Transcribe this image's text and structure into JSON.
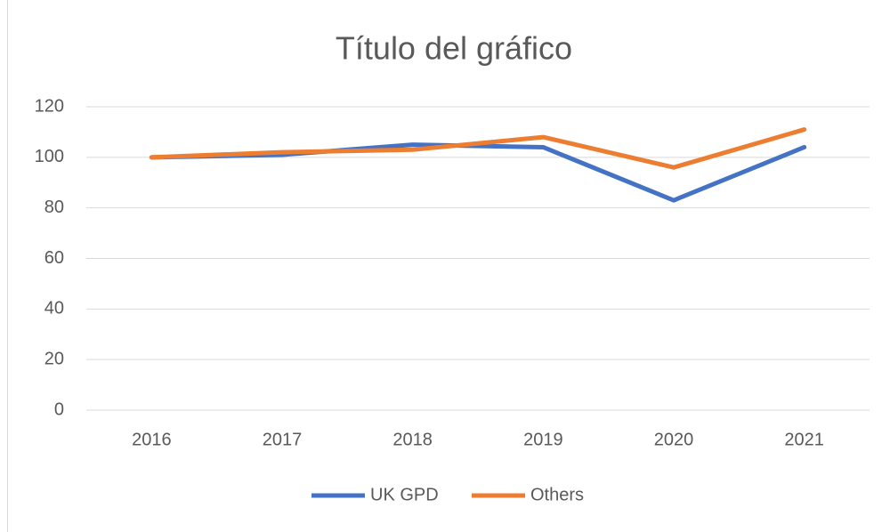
{
  "chart_data": {
    "type": "line",
    "title": "Título del gráfico",
    "categories": [
      "2016",
      "2017",
      "2018",
      "2019",
      "2020",
      "2021"
    ],
    "series": [
      {
        "name": "UK GPD",
        "color": "#4472c4",
        "values": [
          100,
          101,
          105,
          104,
          83,
          104
        ]
      },
      {
        "name": "Others",
        "color": "#ed7d31",
        "values": [
          100,
          102,
          103,
          108,
          96,
          111
        ]
      }
    ],
    "ylim": [
      0,
      120
    ],
    "yticks": [
      0,
      20,
      40,
      60,
      80,
      100,
      120
    ],
    "grid": true,
    "legend": "bottom"
  }
}
